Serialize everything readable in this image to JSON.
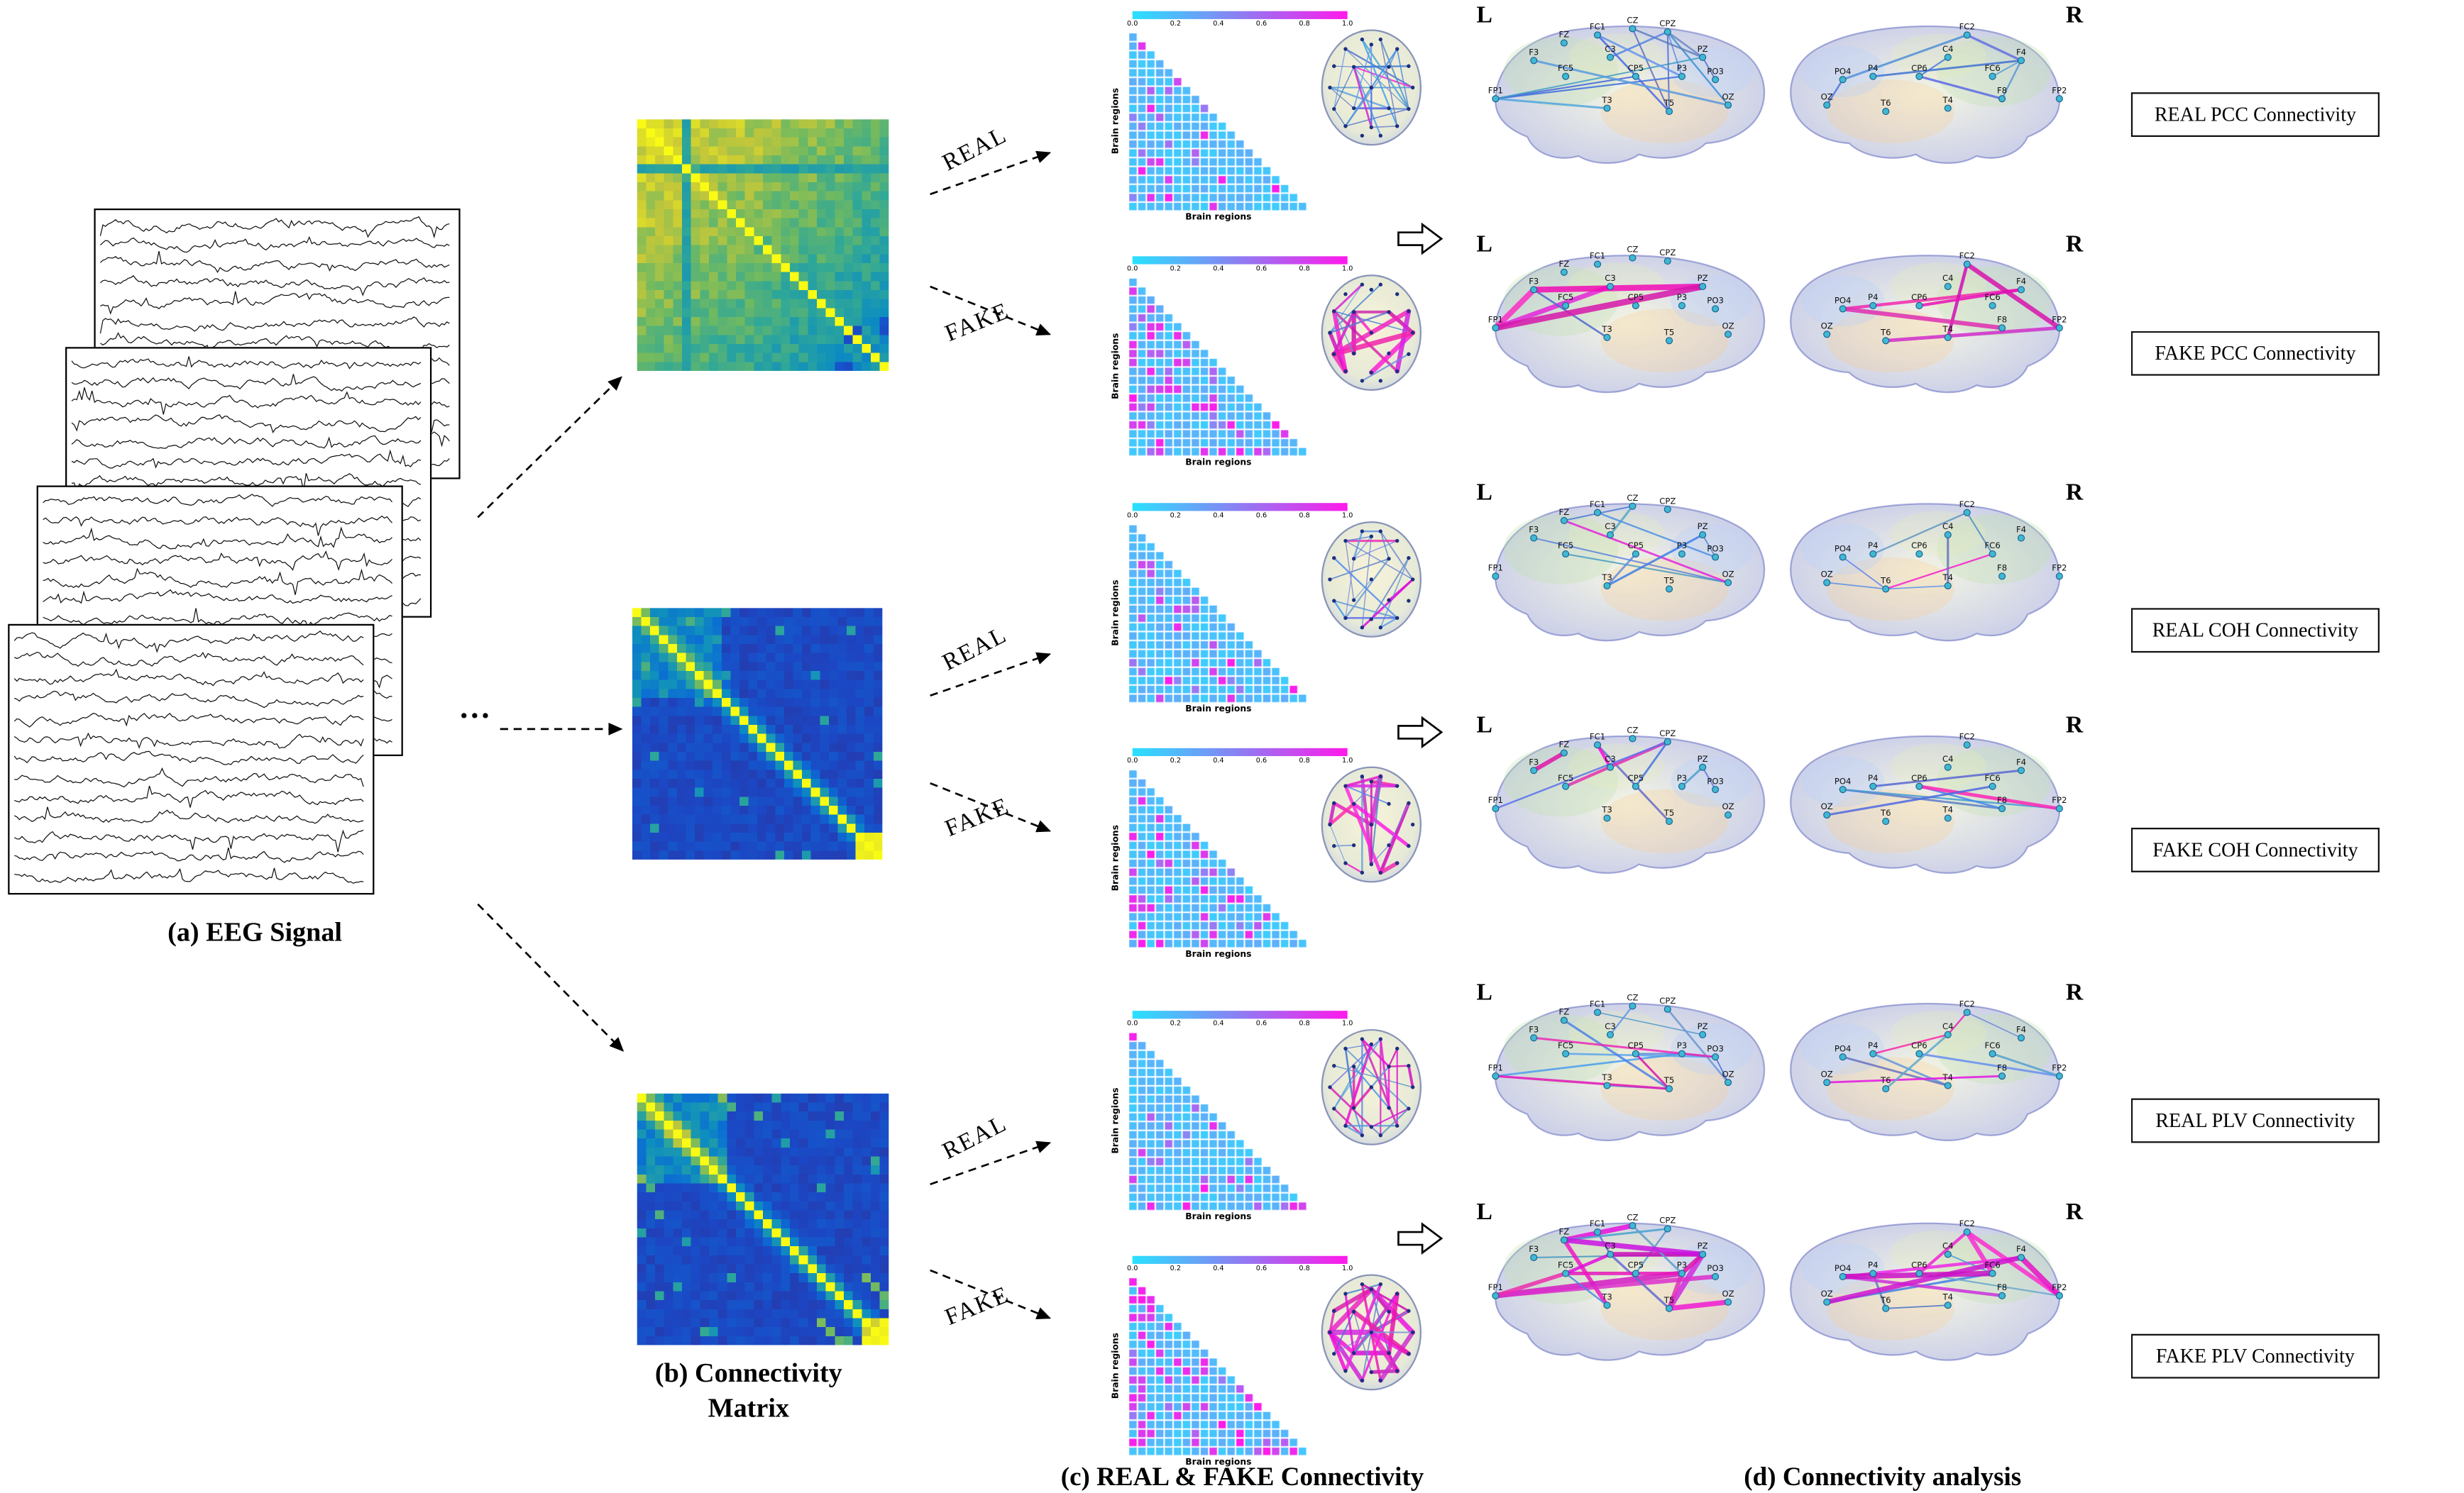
{
  "figure": {
    "caption_a": "(a) EEG Signal",
    "caption_b_line1": "(b) Connectivity",
    "caption_b_line2": "Matrix",
    "caption_c": "(c) REAL & FAKE Connectivity",
    "caption_d": "(d) Connectivity analysis",
    "ellipsis": "…"
  },
  "flow_labels": {
    "real": "REAL",
    "fake": "FAKE"
  },
  "colorbar": {
    "ticks": [
      "0.0",
      "0.2",
      "0.4",
      "0.6",
      "0.8",
      "1.0"
    ],
    "min_color": "#28e1ff",
    "max_color": "#ff19eb"
  },
  "axes": {
    "x_label": "Brain regions",
    "y_label": "Brain regions"
  },
  "hemispheres": {
    "left": "L",
    "right": "R"
  },
  "result_boxes": [
    "REAL PCC Connectivity",
    "FAKE PCC Connectivity",
    "REAL COH Connectivity",
    "FAKE COH Connectivity",
    "REAL PLV Connectivity",
    "FAKE PLV Connectivity"
  ],
  "electrodes": {
    "left": [
      "FP1",
      "F3",
      "FZ",
      "FC5",
      "FC1",
      "C3",
      "CZ",
      "CPZ",
      "CP5",
      "T3",
      "PZ",
      "P3",
      "PO3",
      "T5",
      "OZ"
    ],
    "right": [
      "FP2",
      "F4",
      "FC2",
      "FC6",
      "C4",
      "CP6",
      "P4",
      "PO4",
      "T4",
      "T6",
      "F8",
      "OZ"
    ]
  },
  "colors": {
    "real_edge": "#5577cc",
    "fake_edge": "#cc22bb",
    "matrix_low": "#352a87",
    "matrix_high": "#f9fb14"
  }
}
